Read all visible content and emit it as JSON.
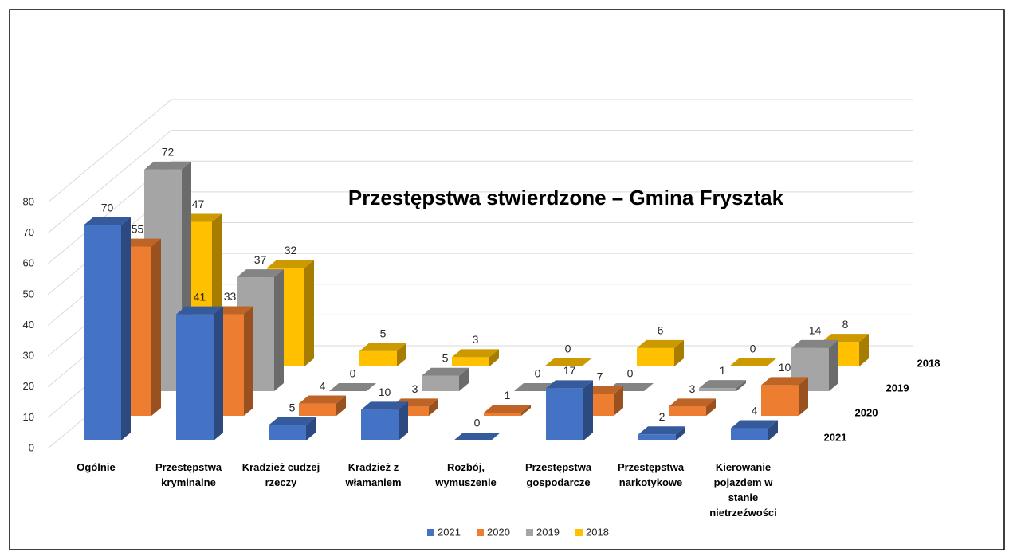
{
  "chart_data": {
    "type": "bar3d",
    "title": "Przestępstwa stwierdzone – Gmina Frysztak",
    "categories": [
      "Ogólnie",
      "Przestępstwa kryminalne",
      "Kradzież cudzej rzeczy",
      "Kradzież z włamaniem",
      "Rozbój, wymuszenie",
      "Przestępstwa gospodarcze",
      "Przestępstwa narkotykowe",
      "Kierowanie pojazdem w stanie nietrzeźwości"
    ],
    "series": [
      {
        "name": "2021",
        "color": "#4472c4",
        "values": [
          70,
          41,
          5,
          10,
          0,
          17,
          2,
          4
        ]
      },
      {
        "name": "2020",
        "color": "#ed7d31",
        "values": [
          55,
          33,
          4,
          3,
          1,
          7,
          3,
          10
        ]
      },
      {
        "name": "2019",
        "color": "#a5a5a5",
        "values": [
          72,
          37,
          0,
          5,
          0,
          0,
          1,
          14
        ]
      },
      {
        "name": "2018",
        "color": "#ffc000",
        "values": [
          47,
          32,
          5,
          3,
          0,
          6,
          0,
          8
        ]
      }
    ],
    "ylim": [
      0,
      80
    ],
    "yticks": [
      0,
      10,
      20,
      30,
      40,
      50,
      60,
      70,
      80
    ],
    "grid": true,
    "legend": "bottom"
  }
}
